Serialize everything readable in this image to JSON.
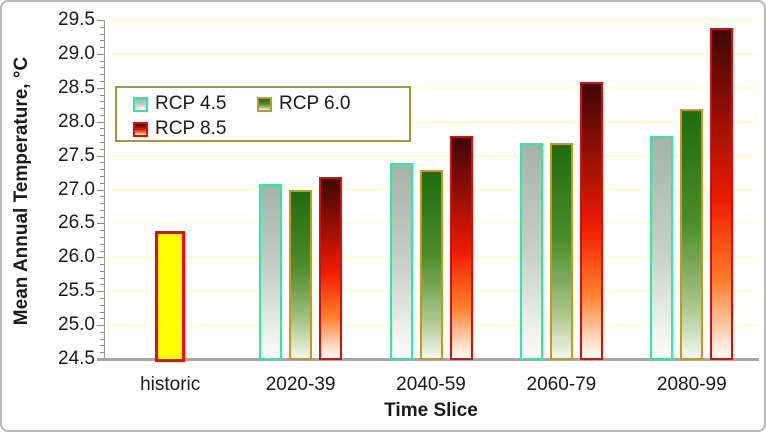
{
  "window": {
    "background": "#FFFFFF",
    "frame_border": "#B9B9B9"
  },
  "colors": {
    "gridline": "#FFFFD4",
    "axis_line": "#A6A6A6",
    "tick_mark": "#8C8C8C",
    "text": "#1A1A1A",
    "legend_border": "#9B9B3A"
  },
  "chart_data": {
    "type": "bar",
    "title": "",
    "xlabel": "Time Slice",
    "ylabel": "Mean Annual Temperature, °C",
    "ylim": [
      24.5,
      29.5
    ],
    "ytick_step": 0.5,
    "yticks": [
      "29.5",
      "29.0",
      "28.5",
      "28.0",
      "27.5",
      "27.0",
      "26.5",
      "26.0",
      "25.5",
      "25.0",
      "24.5"
    ],
    "grid": "horizontal",
    "legend_position": "inset-top-left",
    "categories": [
      "historic",
      "2020-39",
      "2040-59",
      "2060-79",
      "2080-99"
    ],
    "historic_bar": {
      "category": "historic",
      "value": 26.4,
      "fill": "#FFFF00",
      "border": "#FF0000"
    },
    "series": [
      {
        "name": "RCP 4.5",
        "values": [
          null,
          27.1,
          27.4,
          27.7,
          27.8
        ],
        "border": "#2BE9A7",
        "gradient": [
          [
            "#A5B3A8",
            0
          ],
          [
            "#C6CFC5",
            50
          ],
          [
            "#E9EDE7",
            82
          ],
          [
            "#FBFCFA",
            100
          ]
        ]
      },
      {
        "name": "RCP 6.0",
        "values": [
          null,
          27.0,
          27.3,
          27.7,
          28.2
        ],
        "border": "#C8971B",
        "gradient": [
          [
            "#1F6B10",
            0
          ],
          [
            "#4C8C2A",
            45
          ],
          [
            "#A7C487",
            78
          ],
          [
            "#F3F7EE",
            100
          ]
        ]
      },
      {
        "name": "RCP 8.5",
        "values": [
          null,
          27.2,
          27.8,
          28.6,
          29.4
        ],
        "border": "#D50F0A",
        "gradient": [
          [
            "#3E0705",
            0
          ],
          [
            "#9C1003",
            28
          ],
          [
            "#EE1C00",
            52
          ],
          [
            "#FF7B28",
            76
          ],
          [
            "#FFE9D8",
            96
          ],
          [
            "#FFF8F2",
            100
          ]
        ]
      }
    ]
  }
}
